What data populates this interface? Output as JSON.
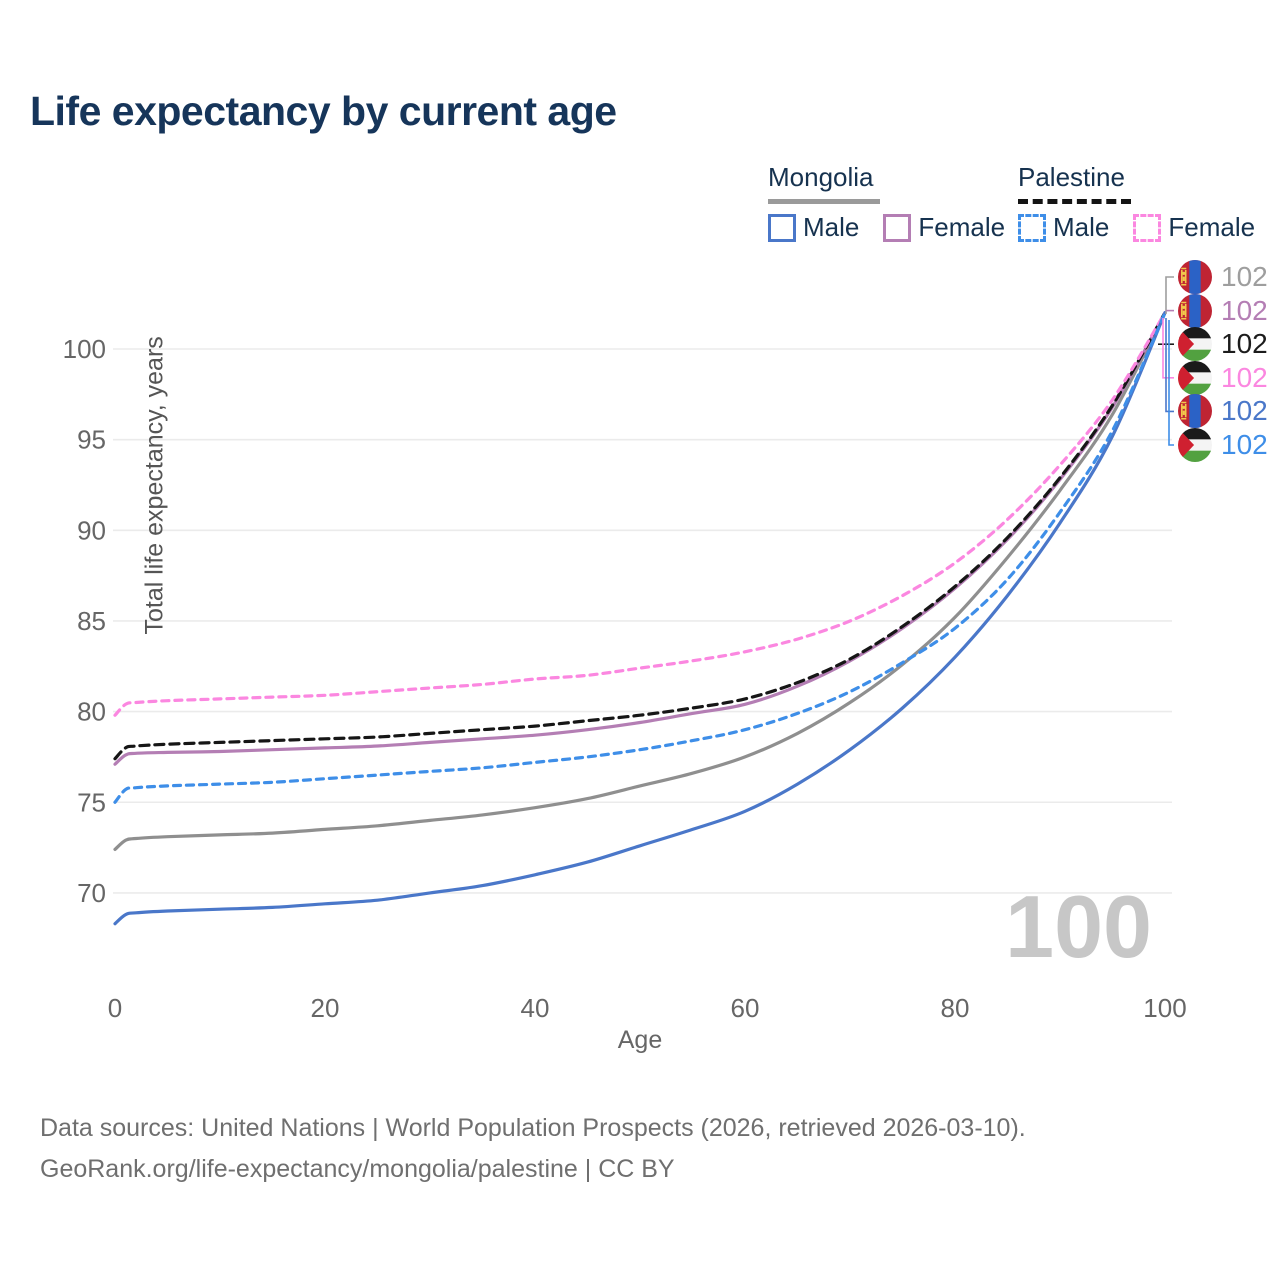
{
  "title": "Life expectancy by current age",
  "legend": {
    "groups": [
      {
        "label": "Mongolia",
        "line_style": "solid",
        "line_color": "#9a9a9a",
        "items": [
          {
            "label": "Male",
            "color": "#4a77c9",
            "dashed": false
          },
          {
            "label": "Female",
            "color": "#b47eb4",
            "dashed": false
          }
        ]
      },
      {
        "label": "Palestine",
        "line_style": "dashed",
        "line_color": "#141414",
        "items": [
          {
            "label": "Male",
            "color": "#3e8ee8",
            "dashed": true
          },
          {
            "label": "Female",
            "color": "#fb87e0",
            "dashed": true
          }
        ]
      }
    ]
  },
  "chart_data": {
    "type": "line",
    "title": "Life expectancy by current age",
    "xlabel": "Age",
    "ylabel": "Total life expectancy, years",
    "xlim": [
      0,
      100
    ],
    "ylim": [
      67.5,
      102.5
    ],
    "x_ticks": [
      0,
      20,
      40,
      60,
      80,
      100
    ],
    "y_ticks": [
      70,
      75,
      80,
      85,
      90,
      95,
      100
    ],
    "grid": "horizontal-only",
    "legend_position": "top-right",
    "watermark": "100",
    "x": [
      0,
      1,
      2,
      5,
      10,
      15,
      20,
      25,
      30,
      35,
      40,
      45,
      50,
      55,
      60,
      65,
      70,
      75,
      80,
      85,
      90,
      95,
      100
    ],
    "series": [
      {
        "name": "Mongolia",
        "country": "mongolia",
        "sex": "both",
        "color": "#8f8f8f",
        "dash": "solid",
        "values": [
          72.4,
          72.9,
          73.0,
          73.1,
          73.2,
          73.3,
          73.5,
          73.7,
          74.0,
          74.3,
          74.7,
          75.2,
          75.9,
          76.6,
          77.5,
          78.8,
          80.5,
          82.6,
          85.2,
          88.5,
          92.2,
          96.4,
          102
        ]
      },
      {
        "name": "Mongolia Female",
        "country": "mongolia",
        "sex": "female",
        "color": "#b47eb4",
        "dash": "solid",
        "values": [
          77.1,
          77.6,
          77.7,
          77.75,
          77.8,
          77.9,
          78.0,
          78.1,
          78.3,
          78.5,
          78.7,
          79.0,
          79.4,
          79.9,
          80.4,
          81.4,
          82.8,
          84.6,
          86.8,
          89.5,
          92.8,
          96.8,
          102
        ]
      },
      {
        "name": "Palestine",
        "country": "palestine",
        "sex": "both",
        "color": "#161616",
        "dash": "dashed",
        "values": [
          77.4,
          78.0,
          78.1,
          78.2,
          78.3,
          78.4,
          78.5,
          78.6,
          78.8,
          79.0,
          79.2,
          79.5,
          79.8,
          80.2,
          80.7,
          81.6,
          82.9,
          84.7,
          86.9,
          89.6,
          92.9,
          96.9,
          102
        ]
      },
      {
        "name": "Palestine Female",
        "country": "palestine",
        "sex": "female",
        "color": "#fb87e0",
        "dash": "dashed",
        "values": [
          79.8,
          80.4,
          80.5,
          80.6,
          80.7,
          80.8,
          80.9,
          81.1,
          81.3,
          81.5,
          81.8,
          82.0,
          82.4,
          82.8,
          83.3,
          84.0,
          85.0,
          86.4,
          88.2,
          90.6,
          93.6,
          97.2,
          102
        ]
      },
      {
        "name": "Mongolia Male",
        "country": "mongolia",
        "sex": "male",
        "color": "#4a77c9",
        "dash": "solid",
        "values": [
          68.3,
          68.8,
          68.9,
          69.0,
          69.1,
          69.2,
          69.4,
          69.6,
          70.0,
          70.4,
          71.0,
          71.7,
          72.6,
          73.5,
          74.5,
          76.0,
          77.9,
          80.2,
          83.0,
          86.4,
          90.4,
          95.2,
          102
        ]
      },
      {
        "name": "Palestine Male",
        "country": "palestine",
        "sex": "male",
        "color": "#3e8ee8",
        "dash": "dashed",
        "values": [
          75.0,
          75.7,
          75.8,
          75.9,
          76.0,
          76.1,
          76.3,
          76.5,
          76.7,
          76.9,
          77.2,
          77.5,
          77.9,
          78.4,
          79.0,
          79.9,
          81.1,
          82.7,
          84.6,
          87.3,
          91.0,
          95.5,
          102
        ]
      }
    ],
    "end_labels": [
      {
        "country": "mongolia",
        "series": "Mongolia",
        "label": "102",
        "color": "#9e9e9e"
      },
      {
        "country": "mongolia",
        "series": "Mongolia Female",
        "label": "102",
        "color": "#b47eb4"
      },
      {
        "country": "palestine",
        "series": "Palestine",
        "label": "102",
        "color": "#1c1c1c"
      },
      {
        "country": "palestine",
        "series": "Palestine Female",
        "label": "102",
        "color": "#fb87e0"
      },
      {
        "country": "mongolia",
        "series": "Mongolia Male",
        "label": "102",
        "color": "#4a77c9"
      },
      {
        "country": "palestine",
        "series": "Palestine Male",
        "label": "102",
        "color": "#3e8ee8"
      }
    ]
  },
  "footer": {
    "line1": "Data sources: United Nations | World Population Prospects (2026, retrieved 2026-03-10).",
    "line2": "GeoRank.org/life-expectancy/mongolia/palestine | CC BY"
  }
}
